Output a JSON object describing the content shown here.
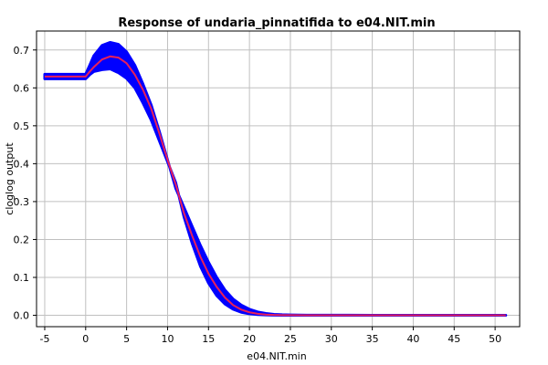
{
  "chart_data": {
    "type": "area",
    "title": "Response of undaria_pinnatifida to e04.NIT.min",
    "xlabel": "e04.NIT.min",
    "ylabel": "cloglog output",
    "xlim": [
      -6,
      53
    ],
    "ylim": [
      -0.03,
      0.75
    ],
    "x_ticks": [
      -5,
      0,
      5,
      10,
      15,
      20,
      25,
      30,
      35,
      40,
      45,
      50
    ],
    "y_ticks": [
      0.0,
      0.1,
      0.2,
      0.3,
      0.4,
      0.5,
      0.6,
      0.7
    ],
    "x_tick_labels": [
      "-5",
      "0",
      "5",
      "10",
      "15",
      "20",
      "25",
      "30",
      "35",
      "40",
      "45",
      "50"
    ],
    "y_tick_labels": [
      "0.0",
      "0.1",
      "0.2",
      "0.3",
      "0.4",
      "0.5",
      "0.6",
      "0.7"
    ],
    "grid": true,
    "colors": {
      "band": "#0000ff",
      "mean": "#e8205a",
      "background": "#ffffff",
      "grid": "#c0c0c0"
    },
    "series": [
      {
        "role": "mean",
        "x": [
          -5,
          -3,
          -1,
          0,
          0.5,
          1,
          2,
          3,
          4,
          5,
          6,
          7,
          8,
          9,
          10,
          11,
          12,
          13,
          14,
          15,
          16,
          17,
          18,
          19,
          20,
          21,
          22,
          23,
          24,
          25,
          27,
          30,
          35,
          40,
          45,
          51.3
        ],
        "values": [
          0.63,
          0.63,
          0.63,
          0.63,
          0.643,
          0.655,
          0.675,
          0.683,
          0.68,
          0.665,
          0.635,
          0.595,
          0.545,
          0.48,
          0.41,
          0.345,
          0.27,
          0.21,
          0.155,
          0.11,
          0.075,
          0.047,
          0.027,
          0.015,
          0.008,
          0.004,
          0.002,
          0.001,
          0.0005,
          0.0003,
          0.0,
          0.0,
          0.0,
          0.0,
          0.0,
          0.0
        ]
      },
      {
        "role": "band-upper",
        "x": [
          -5,
          -3,
          -1,
          0,
          0.5,
          1,
          2,
          3,
          4,
          5,
          6,
          7,
          8,
          9,
          10,
          11,
          12,
          13,
          14,
          15,
          16,
          17,
          18,
          19,
          20,
          21,
          22,
          23,
          24,
          25,
          27,
          30,
          35,
          40,
          45,
          51.3
        ],
        "values": [
          0.636,
          0.636,
          0.636,
          0.636,
          0.66,
          0.685,
          0.712,
          0.72,
          0.715,
          0.695,
          0.66,
          0.61,
          0.555,
          0.485,
          0.41,
          0.335,
          0.285,
          0.235,
          0.185,
          0.14,
          0.1,
          0.067,
          0.043,
          0.027,
          0.016,
          0.009,
          0.005,
          0.0025,
          0.0015,
          0.001,
          0.0005,
          0.0003,
          0.0002,
          0.0002,
          0.0002,
          0.0002
        ]
      },
      {
        "role": "band-lower",
        "x": [
          -5,
          -3,
          -1,
          0,
          0.5,
          1,
          2,
          3,
          4,
          5,
          6,
          7,
          8,
          9,
          10,
          11,
          12,
          13,
          14,
          15,
          16,
          17,
          18,
          19,
          20,
          21,
          22,
          23,
          24,
          25,
          27,
          30,
          35,
          40,
          45,
          51.3
        ],
        "values": [
          0.624,
          0.624,
          0.624,
          0.624,
          0.635,
          0.643,
          0.648,
          0.65,
          0.64,
          0.625,
          0.6,
          0.56,
          0.515,
          0.46,
          0.405,
          0.35,
          0.26,
          0.19,
          0.13,
          0.085,
          0.052,
          0.03,
          0.016,
          0.008,
          0.004,
          0.002,
          0.001,
          0.0005,
          0.0002,
          0.0,
          0.0,
          0.0,
          0.0,
          0.0,
          0.0,
          0.0
        ]
      }
    ]
  }
}
